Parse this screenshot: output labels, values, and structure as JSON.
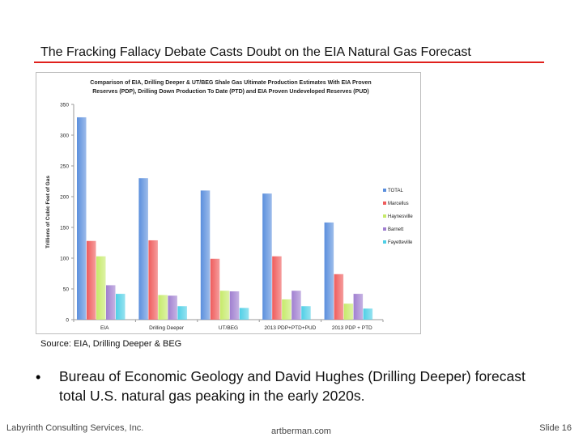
{
  "slide": {
    "title": "The Fracking Fallacy Debate Casts Doubt on the EIA Natural Gas Forecast",
    "source": "Source:  EIA, Drilling Deeper & BEG",
    "bullet": "Bureau of Economic Geology and David Hughes (Drilling Deeper) forecast total U.S. natural gas peaking in the early 2020s.",
    "bullet_symbol": "•",
    "footer_left": "Labyrinth Consulting Services, Inc.",
    "footer_center": "artberman.com",
    "footer_right": "Slide 16"
  },
  "chart_data": {
    "type": "bar",
    "title_line1": "Comparison of EIA, Drilling Deeper & UT/BEG Shale Gas Ultimate Production Estimates With EIA Proven",
    "title_line2": "Reserves (PDP), Drilling Down Production To Date (PTD) and EIA Proven Undeveloped Reserves (PUD)",
    "ylabel": "Trillions of Cubic Feet of Gas",
    "xlabel": "",
    "ylim": [
      0,
      350
    ],
    "yticks": [
      0,
      50,
      100,
      150,
      200,
      250,
      300,
      350
    ],
    "grid": false,
    "legend_position": "right",
    "categories": [
      "EIA",
      "Drilling Deeper",
      "UT/BEG",
      "2013 PDP+PTD+PUD",
      "2013 PDP + PTD"
    ],
    "series": [
      {
        "name": "TOTAL",
        "color": "#5b8fdd",
        "values": [
          329,
          230,
          210,
          205,
          158
        ]
      },
      {
        "name": "Marcellus",
        "color": "#ef5c5c",
        "values": [
          128,
          129,
          99,
          103,
          74
        ]
      },
      {
        "name": "Haynesville",
        "color": "#c6ea6a",
        "values": [
          103,
          40,
          47,
          33,
          26
        ]
      },
      {
        "name": "Barnett",
        "color": "#a07fd0",
        "values": [
          56,
          39,
          46,
          47,
          42
        ]
      },
      {
        "name": "Fayetteville",
        "color": "#4fcfe6",
        "values": [
          42,
          22,
          19,
          22,
          18
        ]
      }
    ]
  }
}
